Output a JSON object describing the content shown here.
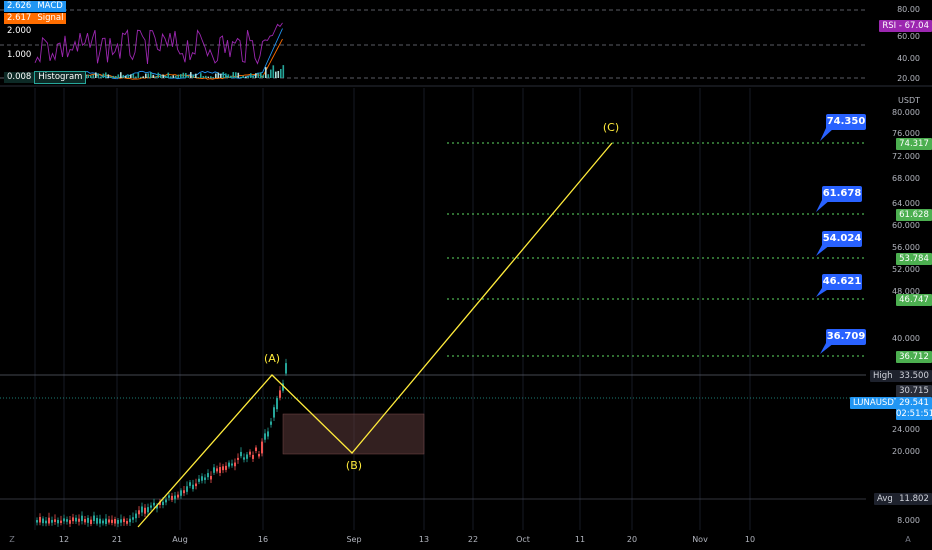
{
  "indicators": {
    "macd": {
      "value": "2.626",
      "name": "MACD",
      "color": "#2196f3"
    },
    "signal": {
      "value": "2.617",
      "name": "Signal",
      "color": "#ff6d00"
    },
    "histogram": {
      "value": "0.008",
      "name": "Histogram",
      "color": "#26a69a"
    },
    "macd_scale": [
      "2.000",
      "1.000"
    ],
    "rsi": {
      "label": "RSI - 67.04",
      "color": "#9c27b0"
    },
    "rsi_scale": [
      "80.00",
      "60.00",
      "40.00",
      "20.00"
    ]
  },
  "price_axis": {
    "unit": "USDT",
    "labels": [
      "80.000",
      "76.000",
      "72.000",
      "68.000",
      "64.000",
      "60.000",
      "56.000",
      "52.000",
      "48.000",
      "40.000",
      "24.000",
      "20.000",
      "8.000"
    ]
  },
  "fib_levels": [
    {
      "label": "74.350",
      "tag": "74.317"
    },
    {
      "label": "61.678",
      "tag": "61.628"
    },
    {
      "label": "54.024",
      "tag": "53.784"
    },
    {
      "label": "46.621",
      "tag": "46.747"
    },
    {
      "label": "36.709",
      "tag": "36.712"
    }
  ],
  "market_tags": {
    "high_label": "High",
    "high_value": "33.500",
    "last_value": "30.715",
    "symbol": "LUNAUSDT",
    "price": "29.541",
    "countdown": "02:51:51",
    "avg_label": "Avg",
    "avg_value": "11.802"
  },
  "waves": [
    "(A)",
    "(B)",
    "(C)"
  ],
  "time_axis": [
    "12",
    "21",
    "Aug",
    "16",
    "Sep",
    "13",
    "22",
    "Oct",
    "11",
    "20",
    "Nov",
    "10"
  ],
  "bottom_icons": [
    "Z",
    "A"
  ],
  "colors": {
    "up": "#26a69a",
    "down": "#ef5350",
    "wave": "#ffeb3b",
    "fib": "#4caf50",
    "fib_label": "#2962ff",
    "rsi": "#9c27b0",
    "zone": "#5d3a3a"
  }
}
